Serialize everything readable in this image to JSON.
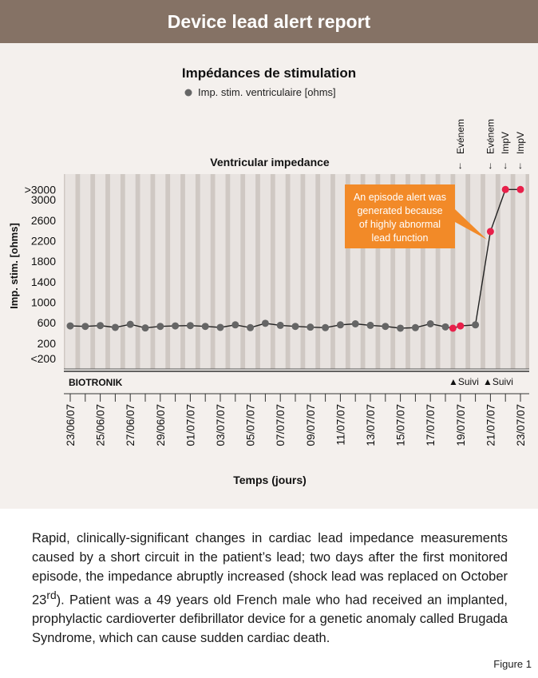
{
  "header": {
    "title": "Device lead alert report"
  },
  "colors": {
    "header_bg": "#857265",
    "panel_bg": "#f4f0ed",
    "normal_point": "#666666",
    "alert_point": "#e8204a",
    "callout": "#f28a28"
  },
  "chart_data": {
    "type": "line",
    "title": "Impédances de stimulation",
    "legend": "Imp. stim. ventriculaire [ohms]",
    "subtitle": "Ventricular impedance",
    "ylabel": "Imp. stim. [ohms]",
    "xlabel": "Temps (jours)",
    "brand": "BIOTRONIK",
    "y_tick_labels": [
      {
        "label": ">3000",
        "value": 3200
      },
      {
        "label": "3000",
        "value": 3000
      },
      {
        "label": "2600",
        "value": 2600
      },
      {
        "label": "2200",
        "value": 2200
      },
      {
        "label": "1800",
        "value": 1800
      },
      {
        "label": "1400",
        "value": 1400
      },
      {
        "label": "1000",
        "value": 1000
      },
      {
        "label": "600",
        "value": 600
      },
      {
        "label": "200",
        "value": 200
      },
      {
        "label": "<200",
        "value": -100
      }
    ],
    "ylim": [
      -300,
      3500
    ],
    "x_days": 30,
    "x_start": "23/06/07",
    "x_tick_labels": [
      "23/06/07",
      "25/06/07",
      "27/06/07",
      "29/06/07",
      "01/07/07",
      "03/07/07",
      "05/07/07",
      "07/07/07",
      "09/07/07",
      "11/07/07",
      "13/07/07",
      "15/07/07",
      "17/07/07",
      "19/07/07",
      "21/07/07",
      "23/07/07"
    ],
    "points": [
      {
        "date": "23/06/07",
        "y": 540,
        "alert": false
      },
      {
        "date": "24/06/07",
        "y": 530,
        "alert": false
      },
      {
        "date": "25/06/07",
        "y": 545,
        "alert": false
      },
      {
        "date": "26/06/07",
        "y": 510,
        "alert": false
      },
      {
        "date": "27/06/07",
        "y": 570,
        "alert": false
      },
      {
        "date": "28/06/07",
        "y": 500,
        "alert": false
      },
      {
        "date": "29/06/07",
        "y": 530,
        "alert": false
      },
      {
        "date": "30/06/07",
        "y": 540,
        "alert": false
      },
      {
        "date": "01/07/07",
        "y": 545,
        "alert": false
      },
      {
        "date": "02/07/07",
        "y": 530,
        "alert": false
      },
      {
        "date": "03/07/07",
        "y": 510,
        "alert": false
      },
      {
        "date": "04/07/07",
        "y": 560,
        "alert": false
      },
      {
        "date": "05/07/07",
        "y": 505,
        "alert": false
      },
      {
        "date": "06/07/07",
        "y": 590,
        "alert": false
      },
      {
        "date": "07/07/07",
        "y": 550,
        "alert": false
      },
      {
        "date": "08/07/07",
        "y": 530,
        "alert": false
      },
      {
        "date": "09/07/07",
        "y": 515,
        "alert": false
      },
      {
        "date": "10/07/07",
        "y": 505,
        "alert": false
      },
      {
        "date": "11/07/07",
        "y": 560,
        "alert": false
      },
      {
        "date": "12/07/07",
        "y": 580,
        "alert": false
      },
      {
        "date": "13/07/07",
        "y": 550,
        "alert": false
      },
      {
        "date": "14/07/07",
        "y": 530,
        "alert": false
      },
      {
        "date": "15/07/07",
        "y": 495,
        "alert": false
      },
      {
        "date": "16/07/07",
        "y": 505,
        "alert": false
      },
      {
        "date": "17/07/07",
        "y": 580,
        "alert": false
      },
      {
        "date": "18/07/07",
        "y": 520,
        "alert": false
      },
      {
        "date": "18.5/07/07",
        "y": 495,
        "alert": true,
        "x_offset": 25.5
      },
      {
        "date": "19/07/07",
        "y": 540,
        "alert": true
      },
      {
        "date": "20/07/07",
        "y": 560,
        "alert": false
      },
      {
        "date": "21/07/07",
        "y": 2380,
        "alert": true
      },
      {
        "date": "22/07/07",
        "y": 3200,
        "alert": true
      },
      {
        "date": "23/07/07",
        "y": 3200,
        "alert": true
      }
    ],
    "event_markers": [
      {
        "label": "Evénem",
        "day": 26
      },
      {
        "label": "Evénem",
        "day": 28
      },
      {
        "label": "ImpV",
        "day": 29
      },
      {
        "label": "ImpV",
        "day": 30
      }
    ],
    "followups": [
      {
        "label": "▲Suivi",
        "day": 26
      },
      {
        "label": "▲Suivi",
        "day": 28
      }
    ],
    "callout": {
      "lines": [
        "An episode alert was",
        "generated because",
        "of highly abnormal",
        "lead function"
      ]
    }
  },
  "caption": {
    "paragraph": "Rapid, clinically-significant changes in cardiac lead impedance measurements caused by a short circuit in the patient’s lead; two days after the first monitored episode, the impedance abruptly increased (shock lead was replaced on October 23",
    "superscript": "rd",
    "paragraph_end": "). Patient was a 49 years old French male who had received an implanted, prophylactic cardioverter defibrillator device for a genetic anomaly called Brugada Syndrome, which can cause sudden cardiac death."
  },
  "figure_label": "Figure 1"
}
